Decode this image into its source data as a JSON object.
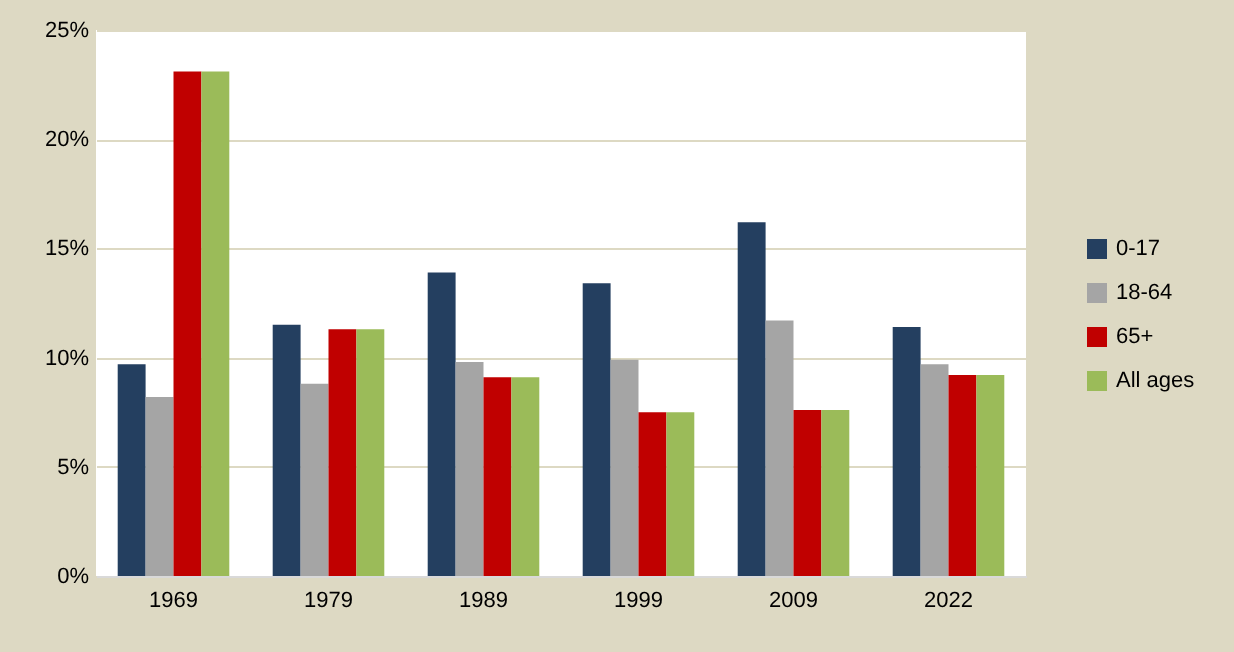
{
  "chart_data": {
    "type": "bar",
    "categories": [
      "1969",
      "1979",
      "1989",
      "1999",
      "2009",
      "2022"
    ],
    "series": [
      {
        "name": "0-17",
        "color": "#243f60",
        "values": [
          9.7,
          11.5,
          13.9,
          13.4,
          16.2,
          11.4
        ]
      },
      {
        "name": "18-64",
        "color": "#a5a5a5",
        "values": [
          8.2,
          8.8,
          9.8,
          9.9,
          11.7,
          9.7
        ]
      },
      {
        "name": "65+",
        "color": "#c00000",
        "values": [
          23.1,
          11.3,
          9.1,
          7.5,
          7.6,
          9.2
        ]
      },
      {
        "name": "All ages",
        "color": "#9bbb59",
        "values": [
          23.1,
          11.3,
          9.1,
          7.5,
          7.6,
          9.2
        ]
      }
    ],
    "ylim": [
      0,
      25
    ],
    "yticks": [
      {
        "value": 0,
        "label": "0%"
      },
      {
        "value": 5,
        "label": "5%"
      },
      {
        "value": 10,
        "label": "10%"
      },
      {
        "value": 15,
        "label": "15%"
      },
      {
        "value": 20,
        "label": "20%"
      },
      {
        "value": 25,
        "label": "25%"
      }
    ],
    "grid": "y",
    "legend": "right"
  }
}
